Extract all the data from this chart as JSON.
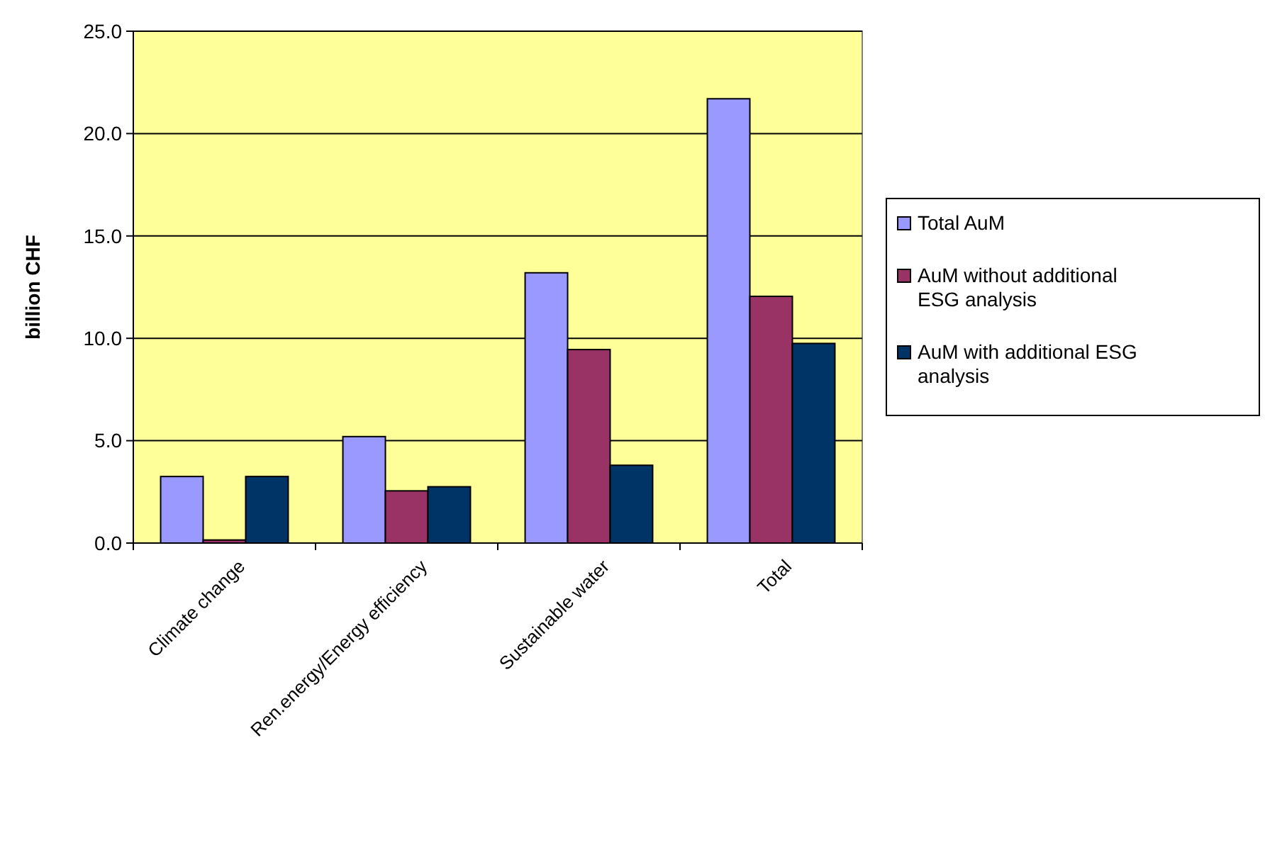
{
  "chart_data": {
    "type": "bar",
    "ylabel": "billion CHF",
    "categories": [
      "Climate change",
      "Ren.energy/Energy efficiency",
      "Sustainable water",
      "Total"
    ],
    "series": [
      {
        "name": "Total AuM",
        "color": "#9999ff",
        "values": [
          3.25,
          5.2,
          13.2,
          21.7
        ]
      },
      {
        "name": "AuM without additional ESG analysis",
        "color": "#993366",
        "values": [
          0.15,
          2.55,
          9.45,
          12.05
        ]
      },
      {
        "name": "AuM with additional ESG analysis",
        "color": "#003366",
        "values": [
          3.25,
          2.75,
          3.8,
          9.75
        ]
      }
    ],
    "ylim": [
      0,
      25
    ],
    "yticks": [
      {
        "value": 0,
        "label": "0.0"
      },
      {
        "value": 5,
        "label": "5.0"
      },
      {
        "value": 10,
        "label": "10.0"
      },
      {
        "value": 15,
        "label": "15.0"
      },
      {
        "value": 20,
        "label": "20.0"
      },
      {
        "value": 25,
        "label": "25.0"
      }
    ],
    "grid": "y",
    "legend": "right"
  }
}
